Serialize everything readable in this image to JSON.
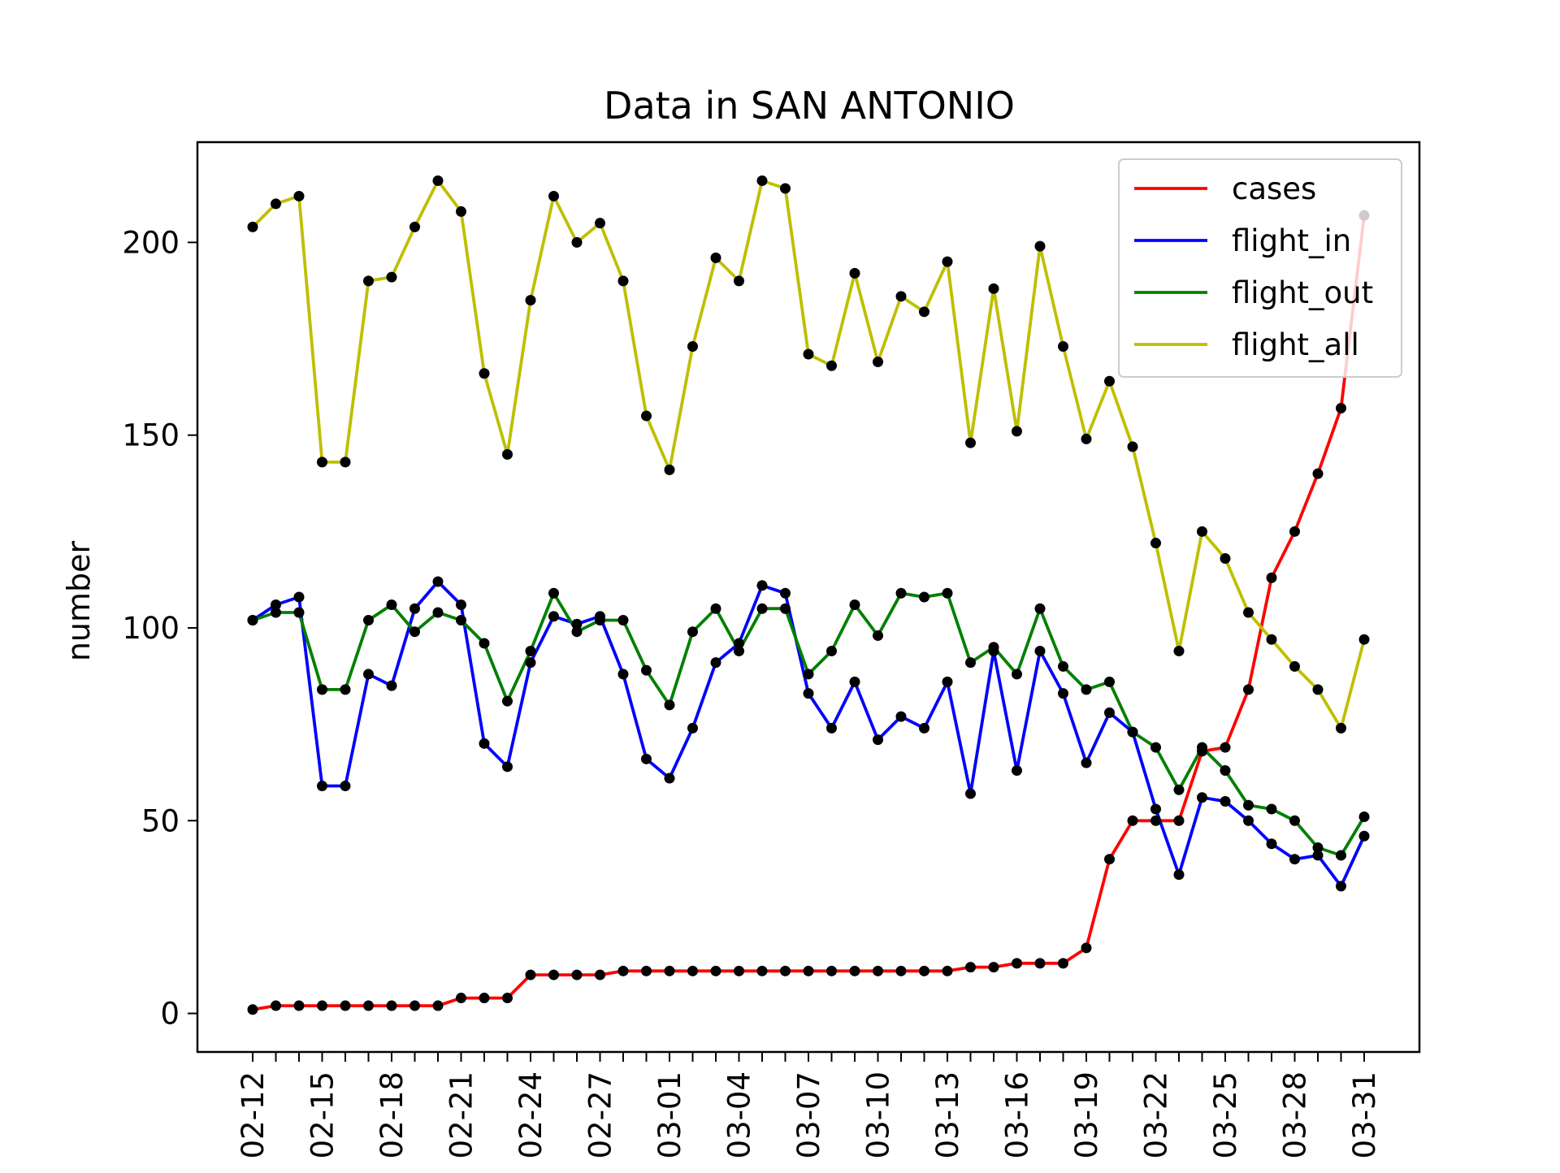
{
  "chart_data": {
    "type": "line",
    "title": "Data in SAN ANTONIO",
    "xlabel": "",
    "ylabel": "number",
    "ylim": [
      -10,
      226
    ],
    "yticks": [
      0,
      50,
      100,
      150,
      200
    ],
    "grid": false,
    "legend_position": "top-right",
    "marker_color": "#000000",
    "x": [
      "02-12",
      "02-13",
      "02-14",
      "02-15",
      "02-16",
      "02-17",
      "02-18",
      "02-19",
      "02-20",
      "02-21",
      "02-22",
      "02-23",
      "02-24",
      "02-25",
      "02-26",
      "02-27",
      "02-28",
      "02-29",
      "03-01",
      "03-02",
      "03-03",
      "03-04",
      "03-05",
      "03-06",
      "03-07",
      "03-08",
      "03-09",
      "03-10",
      "03-11",
      "03-12",
      "03-13",
      "03-14",
      "03-15",
      "03-16",
      "03-17",
      "03-18",
      "03-19",
      "03-20",
      "03-21",
      "03-22",
      "03-23",
      "03-24",
      "03-25",
      "03-26",
      "03-27",
      "03-28",
      "03-29",
      "03-30",
      "03-31"
    ],
    "xtick_labels": [
      "02-12",
      "02-15",
      "02-18",
      "02-21",
      "02-24",
      "02-27",
      "03-01",
      "03-04",
      "03-07",
      "03-10",
      "03-13",
      "03-16",
      "03-19",
      "03-22",
      "03-25",
      "03-28",
      "03-31"
    ],
    "series": [
      {
        "name": "cases",
        "color": "#ff0000",
        "values": [
          1,
          2,
          2,
          2,
          2,
          2,
          2,
          2,
          2,
          4,
          4,
          4,
          10,
          10,
          10,
          10,
          11,
          11,
          11,
          11,
          11,
          11,
          11,
          11,
          11,
          11,
          11,
          11,
          11,
          11,
          11,
          12,
          12,
          13,
          13,
          13,
          17,
          40,
          50,
          50,
          50,
          68,
          69,
          84,
          113,
          125,
          140,
          157,
          207
        ]
      },
      {
        "name": "flight_in",
        "color": "#0000ff",
        "values": [
          102,
          106,
          108,
          59,
          59,
          88,
          85,
          105,
          112,
          106,
          70,
          64,
          91,
          103,
          101,
          103,
          88,
          66,
          61,
          74,
          91,
          96,
          111,
          109,
          83,
          74,
          86,
          71,
          77,
          74,
          86,
          57,
          94,
          63,
          94,
          83,
          65,
          78,
          73,
          53,
          36,
          56,
          55,
          50,
          44,
          40,
          41,
          33,
          46
        ]
      },
      {
        "name": "flight_out",
        "color": "#008000",
        "values": [
          102,
          104,
          104,
          84,
          84,
          102,
          106,
          99,
          104,
          102,
          96,
          81,
          94,
          109,
          99,
          102,
          102,
          89,
          80,
          99,
          105,
          94,
          105,
          105,
          88,
          94,
          106,
          98,
          109,
          108,
          109,
          91,
          95,
          88,
          105,
          90,
          84,
          86,
          73,
          69,
          58,
          69,
          63,
          54,
          53,
          50,
          43,
          41,
          51
        ]
      },
      {
        "name": "flight_all",
        "color": "#bfbf00",
        "values": [
          204,
          210,
          212,
          143,
          143,
          190,
          191,
          204,
          216,
          208,
          166,
          145,
          185,
          212,
          200,
          205,
          190,
          155,
          141,
          173,
          196,
          190,
          216,
          214,
          171,
          168,
          192,
          169,
          186,
          182,
          195,
          148,
          188,
          151,
          199,
          173,
          149,
          164,
          147,
          122,
          94,
          125,
          118,
          104,
          97,
          90,
          84,
          74,
          97
        ]
      }
    ]
  }
}
